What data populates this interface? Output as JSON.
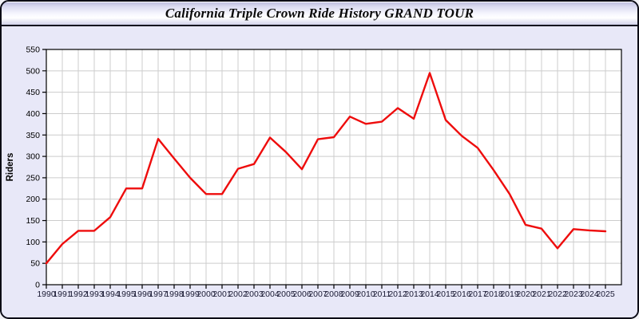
{
  "window": {
    "title": "California Triple Crown Ride History GRAND TOUR"
  },
  "chart_data": {
    "type": "line",
    "title": "California Triple Crown Ride History GRAND TOUR",
    "xlabel": "",
    "ylabel": "Riders",
    "x": [
      1990,
      1991,
      1992,
      1993,
      1994,
      1995,
      1996,
      1997,
      1998,
      1999,
      2000,
      2001,
      2002,
      2003,
      2004,
      2005,
      2006,
      2007,
      2008,
      2009,
      2010,
      2011,
      2012,
      2013,
      2014,
      2015,
      2016,
      2017,
      2018,
      2019,
      2020,
      2021,
      2022,
      2023,
      2024,
      2025
    ],
    "series": [
      {
        "name": "Riders",
        "color": "#ee0c0c",
        "values": [
          50,
          95,
          126,
          126,
          158,
          225,
          225,
          341,
          295,
          250,
          212,
          212,
          271,
          282,
          344,
          310,
          270,
          340,
          345,
          393,
          376,
          381,
          413,
          388,
          495,
          385,
          348,
          320,
          268,
          212,
          140,
          131,
          85,
          130,
          127,
          125
        ]
      }
    ],
    "ylim": [
      0,
      550
    ],
    "ytick_step": 50,
    "xtick_step": 1,
    "grid": true,
    "legend_position": "none",
    "style": {
      "plot_background": "#ffffff",
      "page_background": "#e8e8f8",
      "grid_color": "#cccccc",
      "frame_color": "#000000",
      "tick_label_color": "#1a1a33",
      "ytick_label_color": "#000000",
      "line_width": 2.4
    }
  }
}
